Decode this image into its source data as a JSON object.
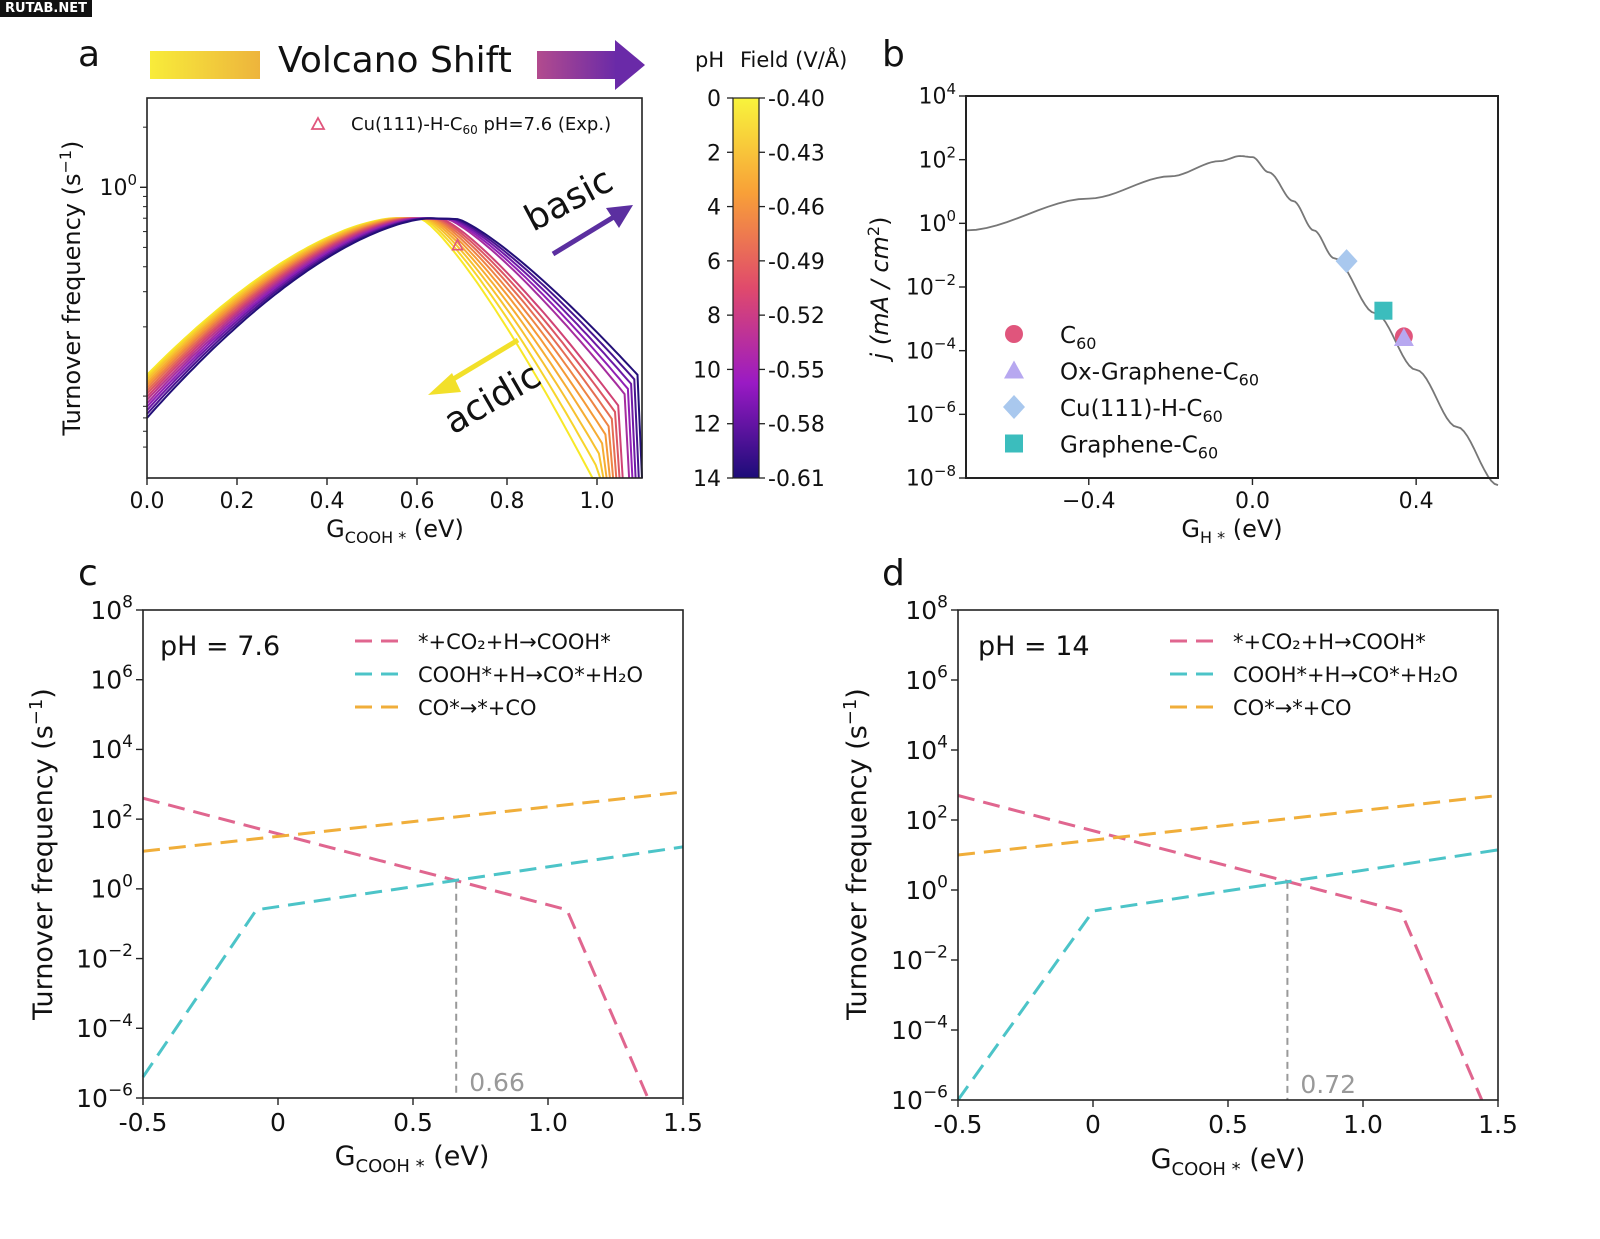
{
  "watermark": "RUTAB.NET",
  "panels": {
    "a": {
      "letter": "a",
      "header": "Volcano Shift",
      "annotation_basic": "basic",
      "annotation_acidic": "acidic"
    },
    "b": {
      "letter": "b"
    },
    "c": {
      "letter": "c"
    },
    "d": {
      "letter": "d"
    }
  },
  "colors": {
    "yellow": "#f5e11c",
    "purple": "#5b1a8c",
    "pink": "#e0668f",
    "cyan": "#4cc4c8",
    "orange": "#f0ae3a",
    "vline": "#999999"
  },
  "chart_data": [
    {
      "panel": "a",
      "type": "line",
      "xlabel": "G",
      "xlabel_sub": "COOH *",
      "xlabel_unit": " (eV)",
      "ylabel": "Turnover frequency (s",
      "ylabel_sup": "−1",
      "ylabel_end": ")",
      "yscale": "log",
      "xlim": [
        0.0,
        1.1
      ],
      "ylim": [
        0.035,
        2.8
      ],
      "xticks": [
        {
          "v": 0.0,
          "label": "0.0"
        },
        {
          "v": 0.2,
          "label": "0.2"
        },
        {
          "v": 0.4,
          "label": "0.4"
        },
        {
          "v": 0.6,
          "label": "0.6"
        },
        {
          "v": 0.8,
          "label": "0.8"
        },
        {
          "v": 1.0,
          "label": "1.0"
        }
      ],
      "yticks": [
        {
          "v": 1,
          "base": "10",
          "exp": "0"
        }
      ],
      "family": {
        "n_curves": 15,
        "pH_values": [
          0,
          1,
          2,
          3,
          4,
          5,
          6,
          7,
          8,
          9,
          10,
          11,
          12,
          13,
          14
        ],
        "peak_y": [
          0.7,
          0.7
        ],
        "peak_x": [
          0.55,
          0.63
        ],
        "y_at_x0": [
          0.115,
          0.07
        ],
        "y_at_xmax": [
          0.035,
          0.115
        ],
        "x_cutoff": [
          1.0,
          1.1
        ]
      },
      "marker": {
        "x": 0.69,
        "y": 0.51,
        "label": "Cu(111)-H-C",
        "label_sub": "60",
        "label_end": " pH=7.6 (Exp.)"
      },
      "colorbar": {
        "title_left": "pH",
        "title_right": "Field (V/Å)",
        "ph_ticks": [
          "0",
          "2",
          "4",
          "6",
          "8",
          "10",
          "12",
          "14"
        ],
        "field_ticks": [
          "-0.40",
          "-0.43",
          "-0.46",
          "-0.49",
          "-0.52",
          "-0.55",
          "-0.58",
          "-0.61"
        ]
      }
    },
    {
      "panel": "b",
      "type": "line",
      "xlabel": "G",
      "xlabel_sub": "H *",
      "xlabel_unit": " (eV)",
      "ylabel": "j (mA / cm",
      "ylabel_sup": "2",
      "ylabel_end": ")",
      "yscale": "log",
      "xlim": [
        -0.7,
        0.6
      ],
      "ylim": [
        1e-08,
        10000.0
      ],
      "xticks": [
        {
          "v": -0.4,
          "label": "−0.4"
        },
        {
          "v": 0.0,
          "label": "0.0"
        },
        {
          "v": 0.4,
          "label": "0.4"
        }
      ],
      "yticks": [
        {
          "v": 1e-08,
          "base": "10",
          "exp": "−8"
        },
        {
          "v": 1e-06,
          "base": "10",
          "exp": "−6"
        },
        {
          "v": 0.0001,
          "base": "10",
          "exp": "−4"
        },
        {
          "v": 0.01,
          "base": "10",
          "exp": "−2"
        },
        {
          "v": 1,
          "base": "10",
          "exp": "0"
        },
        {
          "v": 100.0,
          "base": "10",
          "exp": "2"
        },
        {
          "v": 10000.0,
          "base": "10",
          "exp": "4"
        }
      ],
      "curve": {
        "x": [
          -0.7,
          -0.4,
          -0.2,
          -0.08,
          -0.03,
          0.0,
          0.04,
          0.1,
          0.15,
          0.2,
          0.3,
          0.4,
          0.5,
          0.6
        ],
        "y": [
          0.6,
          6,
          30,
          90,
          130,
          120,
          40,
          5,
          0.6,
          0.08,
          0.0015,
          2.5e-05,
          4e-07,
          6e-09
        ]
      },
      "points": [
        {
          "name": "C",
          "name_sub": "60",
          "x": 0.37,
          "y": 0.00028,
          "color": "#e0557c",
          "marker": "circle"
        },
        {
          "name": "Ox-Graphene-C",
          "name_sub": "60",
          "x": 0.37,
          "y": 0.00025,
          "color": "#b7a8f0",
          "marker": "triangle"
        },
        {
          "name": "Cu(111)-H-C",
          "name_sub": "60",
          "x": 0.23,
          "y": 0.065,
          "color": "#a9c8ee",
          "marker": "diamond"
        },
        {
          "name": "Graphene-C",
          "name_sub": "60",
          "x": 0.32,
          "y": 0.0018,
          "color": "#3bbdbd",
          "marker": "square"
        }
      ]
    },
    {
      "panel": "c",
      "type": "line",
      "title": "pH = 7.6",
      "xlabel": "G",
      "xlabel_sub": "COOH *",
      "xlabel_unit": "  (eV)",
      "ylabel": "Turnover frequency (s",
      "ylabel_sup": "−1",
      "ylabel_end": ")",
      "yscale": "log",
      "xlim": [
        -0.5,
        1.5
      ],
      "ylim": [
        1e-06,
        100000000.0
      ],
      "xticks": [
        {
          "v": -0.5,
          "label": "-0.5"
        },
        {
          "v": 0,
          "label": "0"
        },
        {
          "v": 0.5,
          "label": "0.5"
        },
        {
          "v": 1.0,
          "label": "1.0"
        },
        {
          "v": 1.5,
          "label": "1.5"
        }
      ],
      "yticks": [
        {
          "v": 1e-06,
          "base": "10",
          "exp": "−6"
        },
        {
          "v": 0.0001,
          "base": "10",
          "exp": "−4"
        },
        {
          "v": 0.01,
          "base": "10",
          "exp": "−2"
        },
        {
          "v": 1,
          "base": "10",
          "exp": "0"
        },
        {
          "v": 100.0,
          "base": "10",
          "exp": "2"
        },
        {
          "v": 10000.0,
          "base": "10",
          "exp": "4"
        },
        {
          "v": 1000000.0,
          "base": "10",
          "exp": "6"
        },
        {
          "v": 100000000.0,
          "base": "10",
          "exp": "8"
        }
      ],
      "series": [
        {
          "name": "*+CO₂+H→COOH*",
          "color": "#e0668f",
          "x": [
            -0.5,
            1.07,
            1.37
          ],
          "y": [
            400,
            0.25,
            1e-06
          ]
        },
        {
          "name": "COOH*+H→CO*+H₂O",
          "color": "#4cc4c8",
          "x": [
            -0.5,
            -0.08,
            1.5
          ],
          "y": [
            4e-06,
            0.25,
            16
          ]
        },
        {
          "name": "CO*→*+CO",
          "color": "#f0ae3a",
          "x": [
            -0.5,
            1.5
          ],
          "y": [
            12,
            600
          ]
        }
      ],
      "vline": {
        "x": 0.66,
        "y": 1.6,
        "label": "0.66"
      }
    },
    {
      "panel": "d",
      "type": "line",
      "title": "pH = 14",
      "xlabel": "G",
      "xlabel_sub": "COOH *",
      "xlabel_unit": "  (eV)",
      "ylabel": "Turnover frequency (s",
      "ylabel_sup": "−1",
      "ylabel_end": ")",
      "yscale": "log",
      "xlim": [
        -0.5,
        1.5
      ],
      "ylim": [
        1e-06,
        100000000.0
      ],
      "xticks": [
        {
          "v": -0.5,
          "label": "-0.5"
        },
        {
          "v": 0,
          "label": "0"
        },
        {
          "v": 0.5,
          "label": "0.5"
        },
        {
          "v": 1.0,
          "label": "1.0"
        },
        {
          "v": 1.5,
          "label": "1.5"
        }
      ],
      "yticks": [
        {
          "v": 1e-06,
          "base": "10",
          "exp": "−6"
        },
        {
          "v": 0.0001,
          "base": "10",
          "exp": "−4"
        },
        {
          "v": 0.01,
          "base": "10",
          "exp": "−2"
        },
        {
          "v": 1,
          "base": "10",
          "exp": "0"
        },
        {
          "v": 100.0,
          "base": "10",
          "exp": "2"
        },
        {
          "v": 10000.0,
          "base": "10",
          "exp": "4"
        },
        {
          "v": 1000000.0,
          "base": "10",
          "exp": "6"
        },
        {
          "v": 100000000.0,
          "base": "10",
          "exp": "8"
        }
      ],
      "series": [
        {
          "name": "*+CO₂+H→COOH*",
          "color": "#e0668f",
          "x": [
            -0.5,
            1.14,
            1.44
          ],
          "y": [
            500,
            0.25,
            1e-06
          ]
        },
        {
          "name": "COOH*+H→CO*+H₂O",
          "color": "#4cc4c8",
          "x": [
            -0.5,
            0.0,
            1.5
          ],
          "y": [
            1e-06,
            0.25,
            14
          ]
        },
        {
          "name": "CO*→*+CO",
          "color": "#f0ae3a",
          "x": [
            -0.5,
            1.5
          ],
          "y": [
            10,
            500
          ]
        }
      ],
      "vline": {
        "x": 0.72,
        "y": 1.7,
        "label": "0.72"
      }
    }
  ]
}
